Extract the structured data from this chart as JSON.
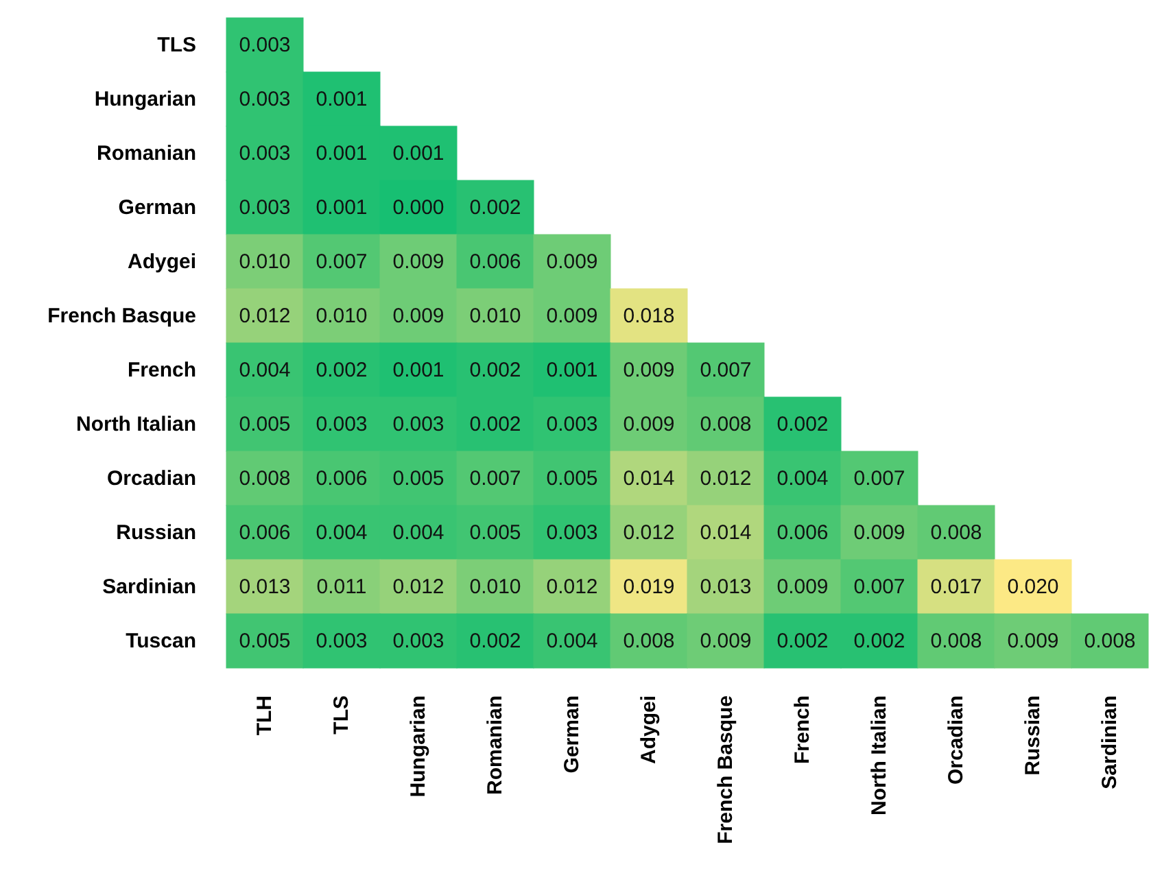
{
  "chart_data": {
    "type": "heatmap",
    "categories": [
      "TLH",
      "TLS",
      "Hungarian",
      "Romanian",
      "German",
      "Adygei",
      "French Basque",
      "French",
      "North Italian",
      "Orcadian",
      "Russian",
      "Sardinian"
    ],
    "y_categories": [
      "TLS",
      "Hungarian",
      "Romanian",
      "German",
      "Adygei",
      "French Basque",
      "French",
      "North Italian",
      "Orcadian",
      "Russian",
      "Sardinian",
      "Tuscan"
    ],
    "cells": [
      [
        0.003,
        null,
        null,
        null,
        null,
        null,
        null,
        null,
        null,
        null,
        null,
        null
      ],
      [
        0.003,
        0.001,
        null,
        null,
        null,
        null,
        null,
        null,
        null,
        null,
        null,
        null
      ],
      [
        0.003,
        0.001,
        0.001,
        null,
        null,
        null,
        null,
        null,
        null,
        null,
        null,
        null
      ],
      [
        0.003,
        0.001,
        0.0,
        0.002,
        null,
        null,
        null,
        null,
        null,
        null,
        null,
        null
      ],
      [
        0.01,
        0.007,
        0.009,
        0.006,
        0.009,
        null,
        null,
        null,
        null,
        null,
        null,
        null
      ],
      [
        0.012,
        0.01,
        0.009,
        0.01,
        0.009,
        0.018,
        null,
        null,
        null,
        null,
        null,
        null
      ],
      [
        0.004,
        0.002,
        0.001,
        0.002,
        0.001,
        0.009,
        0.007,
        null,
        null,
        null,
        null,
        null
      ],
      [
        0.005,
        0.003,
        0.003,
        0.002,
        0.003,
        0.009,
        0.008,
        0.002,
        null,
        null,
        null,
        null
      ],
      [
        0.008,
        0.006,
        0.005,
        0.007,
        0.005,
        0.014,
        0.012,
        0.004,
        0.007,
        null,
        null,
        null
      ],
      [
        0.006,
        0.004,
        0.004,
        0.005,
        0.003,
        0.012,
        0.014,
        0.006,
        0.009,
        0.008,
        null,
        null
      ],
      [
        0.013,
        0.011,
        0.012,
        0.01,
        0.012,
        0.019,
        0.013,
        0.009,
        0.007,
        0.017,
        0.02,
        null
      ],
      [
        0.005,
        0.003,
        0.003,
        0.002,
        0.004,
        0.008,
        0.009,
        0.002,
        0.002,
        0.008,
        0.009,
        0.008
      ]
    ],
    "cell_labels": [
      [
        "0.003",
        null,
        null,
        null,
        null,
        null,
        null,
        null,
        null,
        null,
        null,
        null
      ],
      [
        "0.003",
        "0.001",
        null,
        null,
        null,
        null,
        null,
        null,
        null,
        null,
        null,
        null
      ],
      [
        "0.003",
        "0.001",
        "0.001",
        null,
        null,
        null,
        null,
        null,
        null,
        null,
        null,
        null
      ],
      [
        "0.003",
        "0.001",
        "0.000",
        "0.002",
        null,
        null,
        null,
        null,
        null,
        null,
        null,
        null
      ],
      [
        "0.010",
        "0.007",
        "0.009",
        "0.006",
        "0.009",
        null,
        null,
        null,
        null,
        null,
        null,
        null
      ],
      [
        "0.012",
        "0.010",
        "0.009",
        "0.010",
        "0.009",
        "0.018",
        null,
        null,
        null,
        null,
        null,
        null
      ],
      [
        "0.004",
        "0.002",
        "0.001",
        "0.002",
        "0.001",
        "0.009",
        "0.007",
        null,
        null,
        null,
        null,
        null
      ],
      [
        "0.005",
        "0.003",
        "0.003",
        "0.002",
        "0.003",
        "0.009",
        "0.008",
        "0.002",
        null,
        null,
        null,
        null
      ],
      [
        "0.008",
        "0.006",
        "0.005",
        "0.007",
        "0.005",
        "0.014",
        "0.012",
        "0.004",
        "0.007",
        null,
        null,
        null
      ],
      [
        "0.006",
        "0.004",
        "0.004",
        "0.005",
        "0.003",
        "0.012",
        "0.014",
        "0.006",
        "0.009",
        "0.008",
        null,
        null
      ],
      [
        "0.013",
        "0.011",
        "0.012",
        "0.010",
        "0.012",
        "0.019",
        "0.013",
        "0.009",
        "0.007",
        "0.017",
        "0.020",
        null
      ],
      [
        "0.005",
        "0.003",
        "0.003",
        "0.002",
        "0.004",
        "0.008",
        "0.009",
        "0.002",
        "0.002",
        "0.008",
        "0.009",
        "0.008"
      ]
    ],
    "data_labels": true
  }
}
